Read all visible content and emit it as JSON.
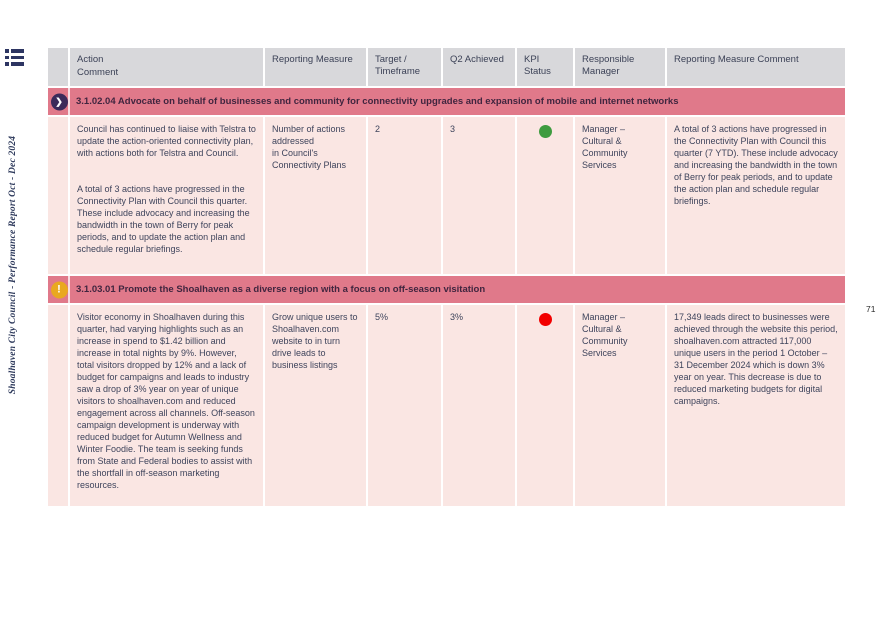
{
  "page": {
    "number": "71",
    "spine_text": "Shoalhaven City Council - Performance Report Oct - Dec 2024"
  },
  "colors": {
    "header_bg": "#d8d8db",
    "row_bg": "#fae6e3",
    "section_band": "#e0798a",
    "kpi_green": "#3e9b3f",
    "kpi_red": "#f20000",
    "icon_purple": "#3b2a5a",
    "icon_amber": "#e9a820"
  },
  "table": {
    "headers": {
      "action": "Action",
      "comment": "Comment",
      "reporting_measure": "Reporting Measure",
      "target_timeframe": "Target / Timeframe",
      "q2_achieved": "Q2 Achieved",
      "kpi_status": "KPI Status",
      "responsible_manager": "Responsible Manager",
      "reporting_measure_comment": "Reporting Measure Comment"
    }
  },
  "sections": [
    {
      "title": "3.1.02.04 Advocate on behalf of businesses and community for connectivity upgrades and expansion of mobile and internet networks",
      "icon": "chevron-right-circle-icon",
      "icon_glyph": "❯",
      "row": {
        "comment_p1": "Council has continued to liaise with Telstra to update the action-oriented connectivity plan, with actions both for Telstra and Council.",
        "comment_p2": "A total of 3 actions have progressed in the Connectivity Plan with Council this quarter. These include advocacy and increasing the bandwidth in the town of Berry for peak periods, and to update the action plan and schedule regular briefings.",
        "reporting_measure": "Number of actions addressed\nin Council's Connectivity Plans",
        "target_timeframe": "2",
        "q2_achieved": "3",
        "kpi_status": "green",
        "kpi_color": "#3e9b3f",
        "responsible_manager": "Manager – Cultural & Community Services",
        "reporting_measure_comment": "A total of 3 actions have progressed in the Connectivity Plan with Council this quarter (7 YTD). These include advocacy and increasing the bandwidth in the town of Berry for peak periods, and to update the action plan and schedule regular briefings."
      }
    },
    {
      "title": "3.1.03.01 Promote the Shoalhaven as a diverse region with a focus on off-season visitation",
      "icon": "exclamation-circle-icon",
      "icon_glyph": "!",
      "row": {
        "comment_p1": "Visitor economy in Shoalhaven during this quarter, had varying highlights such as an increase in spend to $1.42 billion and increase in total nights by 9%. However, total visitors dropped by 12% and a lack of budget for campaigns and leads to industry saw a drop of 3% year on year of unique visitors to shoalhaven.com and reduced engagement across all channels. Off-season campaign development is underway with reduced budget for Autumn Wellness and Winter Foodie. The team is seeking funds from State and Federal bodies to assist with the shortfall in off-season marketing resources.",
        "reporting_measure": "Grow unique users to Shoalhaven.com website to in turn drive leads to business listings",
        "target_timeframe": "5%",
        "q2_achieved": "3%",
        "kpi_status": "red",
        "kpi_color": "#f20000",
        "responsible_manager": "Manager – Cultural & Community Services",
        "reporting_measure_comment": "17,349 leads direct to businesses were achieved through the website this period, shoalhaven.com attracted 117,000 unique users in the period 1 October – 31 December 2024 which is down 3% year on year. This decrease is due to reduced marketing budgets for digital campaigns."
      }
    }
  ]
}
